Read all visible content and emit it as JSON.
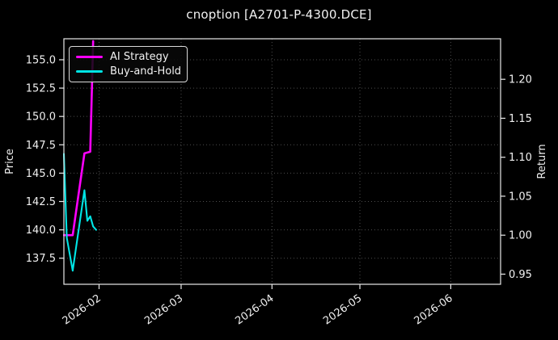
{
  "figure": {
    "background": "#000000",
    "text_color": "#f0f0f0",
    "spine_color": "#e8e8e8",
    "grid_color": "#4d4d4d"
  },
  "legend": {
    "position": "upper left",
    "items": [
      {
        "label": "AI Strategy",
        "color": "#ff00ff"
      },
      {
        "label": "Buy-and-Hold",
        "color": "#00e5e5"
      }
    ]
  },
  "chart_data": {
    "type": "line",
    "title": "cnoption [A2701-P-4300.DCE]",
    "xlabel": "",
    "grid": true,
    "x_range": [
      "2026-01-20",
      "2026-06-18"
    ],
    "x_ticks": [
      {
        "date": "2026-02-01",
        "label": "2026-02"
      },
      {
        "date": "2026-03-01",
        "label": "2026-03"
      },
      {
        "date": "2026-04-01",
        "label": "2026-04"
      },
      {
        "date": "2026-05-01",
        "label": "2026-05"
      },
      {
        "date": "2026-06-01",
        "label": "2026-06"
      }
    ],
    "left_axis": {
      "label": "Price",
      "lim": [
        135.2,
        156.85
      ],
      "ticks": [
        137.5,
        140.0,
        142.5,
        145.0,
        147.5,
        150.0,
        152.5,
        155.0
      ],
      "decimals": 1
    },
    "right_axis": {
      "label": "Return",
      "lim": [
        0.937,
        1.252
      ],
      "ticks": [
        0.95,
        1.0,
        1.05,
        1.1,
        1.15,
        1.2
      ],
      "decimals": 2
    },
    "series": [
      {
        "name": "AI Strategy",
        "axis": "right",
        "color": "#ff00ff",
        "linewidth": 2.6,
        "points": [
          [
            "2026-01-20",
            1.0
          ],
          [
            "2026-01-23",
            1.0
          ],
          [
            "2026-01-27",
            1.105
          ],
          [
            "2026-01-29",
            1.107
          ],
          [
            "2026-01-30",
            1.249
          ]
        ]
      },
      {
        "name": "Buy-and-Hold",
        "axis": "left",
        "color": "#00e5e5",
        "linewidth": 2.1,
        "points": [
          [
            "2026-01-20",
            146.7
          ],
          [
            "2026-01-21",
            139.3
          ],
          [
            "2026-01-23",
            136.4
          ],
          [
            "2026-01-27",
            143.5
          ],
          [
            "2026-01-28",
            140.8
          ],
          [
            "2026-01-29",
            141.2
          ],
          [
            "2026-01-30",
            140.3
          ],
          [
            "2026-01-31",
            140.0
          ]
        ]
      }
    ]
  }
}
